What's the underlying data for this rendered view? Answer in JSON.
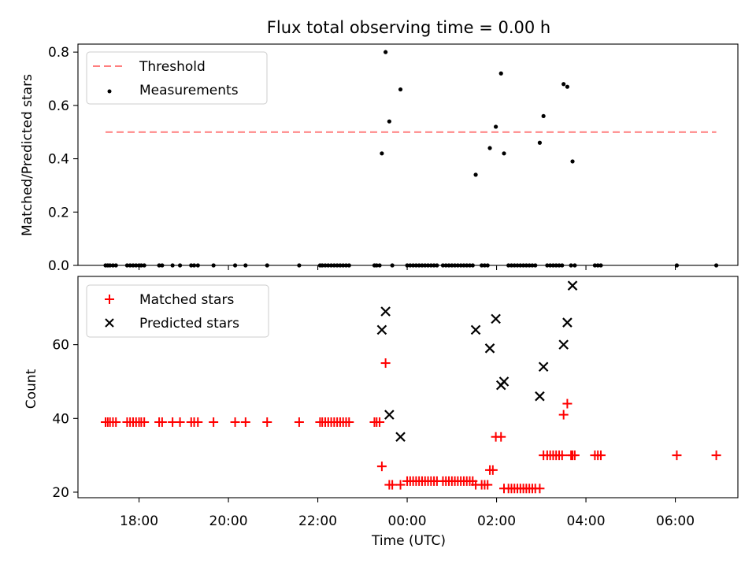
{
  "figure": {
    "title": "Flux total observing time = 0.00 h",
    "xlabel": "Time (UTC)"
  },
  "x_ticks": [
    "18:00",
    "20:00",
    "22:00",
    "00:00",
    "02:00",
    "04:00",
    "06:00"
  ],
  "chart_data": [
    {
      "type": "scatter",
      "title": "Flux total observing time = 0.00 h",
      "xlabel": "",
      "ylabel": "Matched/Predicted stars",
      "xlim": [
        "16:38",
        "07:24"
      ],
      "ylim": [
        0,
        0.83
      ],
      "y_ticks": [
        "0.0",
        "0.2",
        "0.4",
        "0.6",
        "0.8"
      ],
      "grid": false,
      "legend": "top-left",
      "threshold": {
        "name": "Threshold",
        "value": 0.5,
        "x_range": [
          "17:15",
          "06:55"
        ],
        "color": "#ff7f7f",
        "style": "dashed"
      },
      "series": [
        {
          "name": "Measurements",
          "color": "#000000",
          "marker": "dot",
          "x": [
            "17:15",
            "17:18",
            "17:21",
            "17:25",
            "17:29",
            "17:44",
            "17:48",
            "17:52",
            "17:56",
            "18:00",
            "18:03",
            "18:07",
            "18:27",
            "18:31",
            "18:45",
            "18:55",
            "19:10",
            "19:14",
            "19:19",
            "19:40",
            "20:09",
            "20:23",
            "20:52",
            "21:35",
            "22:03",
            "22:06",
            "22:10",
            "22:14",
            "22:18",
            "22:22",
            "22:26",
            "22:30",
            "22:34",
            "22:38",
            "22:42",
            "23:16",
            "23:19",
            "23:23",
            "23:40",
            "00:00",
            "00:04",
            "00:08",
            "00:12",
            "00:16",
            "00:20",
            "00:24",
            "00:28",
            "00:32",
            "00:36",
            "00:40",
            "00:48",
            "00:52",
            "00:56",
            "01:00",
            "01:04",
            "01:08",
            "01:12",
            "01:16",
            "01:20",
            "01:24",
            "01:28",
            "01:40",
            "01:44",
            "01:48",
            "02:16",
            "02:20",
            "02:24",
            "02:28",
            "02:32",
            "02:36",
            "02:40",
            "02:44",
            "02:48",
            "02:52",
            "03:08",
            "03:12",
            "03:16",
            "03:20",
            "03:24",
            "03:28",
            "03:40",
            "03:45",
            "04:12",
            "04:16",
            "04:20",
            "06:02",
            "06:55"
          ],
          "y": [
            0,
            0,
            0,
            0,
            0,
            0,
            0,
            0,
            0,
            0,
            0,
            0,
            0,
            0,
            0,
            0,
            0,
            0,
            0,
            0,
            0,
            0,
            0,
            0,
            0,
            0,
            0,
            0,
            0,
            0,
            0,
            0,
            0,
            0,
            0,
            0,
            0,
            0,
            0,
            0,
            0,
            0,
            0,
            0,
            0,
            0,
            0,
            0,
            0,
            0,
            0,
            0,
            0,
            0,
            0,
            0,
            0,
            0,
            0,
            0,
            0,
            0,
            0,
            0,
            0,
            0,
            0,
            0,
            0,
            0,
            0,
            0,
            0,
            0,
            0,
            0,
            0,
            0,
            0,
            0,
            0,
            0,
            0,
            0,
            0,
            0,
            0
          ],
          "extra_x": [
            "23:26",
            "23:31",
            "23:36",
            "23:51",
            "01:32",
            "01:51",
            "01:59",
            "02:06",
            "02:10",
            "02:58",
            "03:03",
            "03:30",
            "03:35",
            "03:42"
          ],
          "extra_y": [
            0.42,
            0.8,
            0.54,
            0.66,
            0.34,
            0.44,
            0.52,
            0.72,
            0.42,
            0.46,
            0.56,
            0.68,
            0.67,
            0.39
          ]
        }
      ]
    },
    {
      "type": "scatter",
      "xlabel": "Time (UTC)",
      "ylabel": "Count",
      "xlim": [
        "16:38",
        "07:24"
      ],
      "ylim": [
        18.5,
        78.5
      ],
      "y_ticks": [
        "20",
        "40",
        "60"
      ],
      "grid": false,
      "legend": "top-left",
      "series": [
        {
          "name": "Matched stars",
          "color": "#ff0000",
          "marker": "plus",
          "x": [
            "17:15",
            "17:18",
            "17:21",
            "17:25",
            "17:29",
            "17:44",
            "17:48",
            "17:52",
            "17:56",
            "18:00",
            "18:03",
            "18:07",
            "18:27",
            "18:31",
            "18:45",
            "18:55",
            "19:10",
            "19:14",
            "19:19",
            "19:40",
            "20:09",
            "20:23",
            "20:52",
            "21:35",
            "22:03",
            "22:06",
            "22:10",
            "22:14",
            "22:18",
            "22:22",
            "22:26",
            "22:30",
            "22:34",
            "22:38",
            "22:42",
            "23:16",
            "23:19",
            "23:23",
            "23:26",
            "23:31",
            "23:36",
            "23:40",
            "23:51",
            "00:00",
            "00:04",
            "00:08",
            "00:12",
            "00:16",
            "00:20",
            "00:24",
            "00:28",
            "00:32",
            "00:36",
            "00:40",
            "00:48",
            "00:52",
            "00:56",
            "01:00",
            "01:04",
            "01:08",
            "01:12",
            "01:16",
            "01:20",
            "01:24",
            "01:28",
            "01:32",
            "01:40",
            "01:44",
            "01:48",
            "01:51",
            "01:55",
            "01:59",
            "02:06",
            "02:10",
            "02:16",
            "02:20",
            "02:24",
            "02:28",
            "02:32",
            "02:36",
            "02:40",
            "02:44",
            "02:48",
            "02:52",
            "02:58",
            "03:03",
            "03:08",
            "03:12",
            "03:16",
            "03:20",
            "03:24",
            "03:28",
            "03:30",
            "03:35",
            "03:40",
            "03:42",
            "03:45",
            "04:12",
            "04:16",
            "04:20",
            "06:02",
            "06:55"
          ],
          "y": [
            39,
            39,
            39,
            39,
            39,
            39,
            39,
            39,
            39,
            39,
            39,
            39,
            39,
            39,
            39,
            39,
            39,
            39,
            39,
            39,
            39,
            39,
            39,
            39,
            39,
            39,
            39,
            39,
            39,
            39,
            39,
            39,
            39,
            39,
            39,
            39,
            39,
            39,
            27,
            55,
            22,
            22,
            22,
            23,
            23,
            23,
            23,
            23,
            23,
            23,
            23,
            23,
            23,
            23,
            23,
            23,
            23,
            23,
            23,
            23,
            23,
            23,
            23,
            23,
            23,
            22,
            22,
            22,
            22,
            26,
            26,
            35,
            35,
            21,
            21,
            21,
            21,
            21,
            21,
            21,
            21,
            21,
            21,
            21,
            21,
            30,
            30,
            30,
            30,
            30,
            30,
            30,
            41,
            44,
            30,
            30,
            30,
            30,
            30,
            30,
            30,
            30
          ]
        },
        {
          "name": "Predicted stars",
          "color": "#000000",
          "marker": "x",
          "x": [
            "23:26",
            "23:31",
            "23:36",
            "23:51",
            "01:32",
            "01:51",
            "01:59",
            "02:06",
            "02:10",
            "02:58",
            "03:03",
            "03:30",
            "03:35",
            "03:42"
          ],
          "y": [
            64,
            69,
            41,
            35,
            64,
            59,
            67,
            49,
            50,
            46,
            54,
            60,
            66,
            76
          ]
        }
      ]
    }
  ]
}
